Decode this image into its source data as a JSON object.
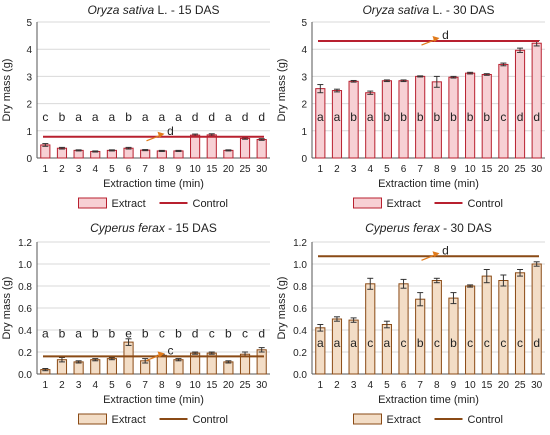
{
  "colors": {
    "rice_bar_fill": "#f7d0d4",
    "rice_bar_stroke": "#b8202f",
    "rice_control": "#b8202f",
    "weed_bar_fill": "#f3ddc6",
    "weed_bar_stroke": "#8a4a15",
    "weed_control": "#8a4a15",
    "arrow": "#e07a1a",
    "grid": "#d9d9d9"
  },
  "chart_data": [
    {
      "type": "bar",
      "title_italic": "Oryza sativa",
      "title_rest": " L. - 15 DAS",
      "title_style": "rice",
      "ylabel": "Dry mass (g)",
      "xlabel": "Extraction time (min)",
      "ylim": [
        0,
        5
      ],
      "yticks": [
        "0",
        "1",
        "2",
        "3",
        "4",
        "5"
      ],
      "grid": true,
      "categories": [
        "1",
        "2",
        "3",
        "4",
        "5",
        "6",
        "7",
        "8",
        "9",
        "10",
        "15",
        "20",
        "25",
        "30"
      ],
      "series": [
        {
          "name": "Extract",
          "values": [
            0.48,
            0.36,
            0.28,
            0.24,
            0.28,
            0.36,
            0.29,
            0.26,
            0.26,
            0.84,
            0.85,
            0.28,
            0.72,
            0.68
          ]
        }
      ],
      "error": [
        0.05,
        0.03,
        0.02,
        0.02,
        0.02,
        0.03,
        0.02,
        0.02,
        0.02,
        0.04,
        0.04,
        0.02,
        0.03,
        0.03
      ],
      "letters": [
        "c",
        "b",
        "a",
        "a",
        "a",
        "b",
        "a",
        "a",
        "a",
        "d",
        "d",
        "a",
        "d",
        "d"
      ],
      "letters_y": 1.5,
      "control": {
        "name": "Control",
        "value": 0.78,
        "letter": "d"
      },
      "legend": {
        "placement": "bottom",
        "items": [
          "Extract",
          "Control"
        ]
      }
    },
    {
      "type": "bar",
      "title_italic": "Oryza sativa",
      "title_rest": " L. - 30 DAS",
      "title_style": "rice",
      "ylabel": "Dry mass (g)",
      "xlabel": "Extraction time (min)",
      "ylim": [
        0,
        5
      ],
      "yticks": [
        "0",
        "1",
        "2",
        "3",
        "4",
        "5"
      ],
      "grid": true,
      "categories": [
        "1",
        "2",
        "3",
        "4",
        "5",
        "6",
        "7",
        "8",
        "9",
        "10",
        "15",
        "20",
        "25",
        "30"
      ],
      "series": [
        {
          "name": "Extract",
          "values": [
            2.55,
            2.48,
            2.82,
            2.4,
            2.84,
            2.84,
            3.0,
            2.8,
            2.97,
            3.12,
            3.07,
            3.44,
            3.96,
            4.22
          ]
        }
      ],
      "error": [
        0.15,
        0.05,
        0.03,
        0.06,
        0.03,
        0.03,
        0.02,
        0.2,
        0.03,
        0.03,
        0.03,
        0.05,
        0.08,
        0.1
      ],
      "letters": [
        "a",
        "a",
        "b",
        "a",
        "b",
        "b",
        "b",
        "b",
        "b",
        "b",
        "b",
        "c",
        "d",
        "d"
      ],
      "letters_y": 1.5,
      "control": {
        "name": "Control",
        "value": 4.3,
        "letter": "d"
      },
      "legend": {
        "placement": "bottom",
        "items": [
          "Extract",
          "Control"
        ]
      }
    },
    {
      "type": "bar",
      "title_italic": "Cyperus ferax",
      "title_rest": " - 15 DAS",
      "title_style": "weed",
      "ylabel": "Dry mass (g)",
      "xlabel": "Extraction time (min)",
      "ylim": [
        0,
        1.2
      ],
      "yticks": [
        "0.0",
        "0.2",
        "0.4",
        "0.6",
        "0.8",
        "1.0",
        "1.2"
      ],
      "grid": true,
      "categories": [
        "1",
        "2",
        "3",
        "4",
        "5",
        "6",
        "7",
        "8",
        "9",
        "10",
        "15",
        "20",
        "25",
        "30"
      ],
      "series": [
        {
          "name": "Extract",
          "values": [
            0.04,
            0.13,
            0.11,
            0.13,
            0.14,
            0.29,
            0.12,
            0.17,
            0.13,
            0.19,
            0.19,
            0.11,
            0.18,
            0.22
          ]
        }
      ],
      "error": [
        0.01,
        0.02,
        0.01,
        0.01,
        0.01,
        0.03,
        0.02,
        0.01,
        0.01,
        0.01,
        0.01,
        0.01,
        0.02,
        0.02
      ],
      "letters": [
        "a",
        "b",
        "a",
        "b",
        "b",
        "e",
        "b",
        "c",
        "b",
        "d",
        "c",
        "b",
        "c",
        "d"
      ],
      "letters_y": 0.37,
      "control": {
        "name": "Control",
        "value": 0.16,
        "letter": "c"
      },
      "legend": {
        "placement": "bottom",
        "items": [
          "Extract",
          "Control"
        ]
      }
    },
    {
      "type": "bar",
      "title_italic": "Cyperus ferax",
      "title_rest": " - 30 DAS",
      "title_style": "weed",
      "ylabel": "Dry mass (g)",
      "xlabel": "Extraction time (min)",
      "ylim": [
        0,
        1.2
      ],
      "yticks": [
        "0.0",
        "0.2",
        "0.4",
        "0.6",
        "0.8",
        "1.0",
        "1.2"
      ],
      "grid": true,
      "categories": [
        "1",
        "2",
        "3",
        "4",
        "5",
        "6",
        "7",
        "8",
        "9",
        "10",
        "15",
        "20",
        "25",
        "30"
      ],
      "series": [
        {
          "name": "Extract",
          "values": [
            0.42,
            0.5,
            0.49,
            0.82,
            0.45,
            0.82,
            0.68,
            0.85,
            0.69,
            0.8,
            0.89,
            0.85,
            0.92,
            1.0
          ]
        }
      ],
      "error": [
        0.03,
        0.02,
        0.02,
        0.05,
        0.03,
        0.04,
        0.06,
        0.02,
        0.05,
        0.01,
        0.06,
        0.05,
        0.03,
        0.02
      ],
      "letters": [
        "a",
        "a",
        "a",
        "c",
        "a",
        "c",
        "b",
        "c",
        "b",
        "c",
        "c",
        "c",
        "c",
        "d"
      ],
      "letters_y": 0.28,
      "control": {
        "name": "Control",
        "value": 1.07,
        "letter": "d"
      },
      "legend": {
        "placement": "bottom",
        "items": [
          "Extract",
          "Control"
        ]
      }
    }
  ]
}
